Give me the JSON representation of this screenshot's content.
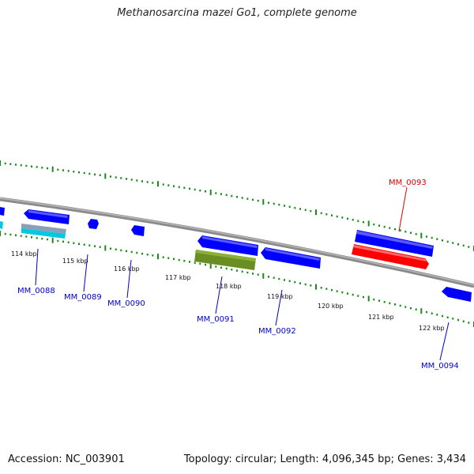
{
  "title": "Methanosarcina mazei Go1, complete genome",
  "footer": {
    "accession": "Accession: NC_003901",
    "summary": "Topology: circular; Length: 4,096,345 bp; Genes: 3,434"
  },
  "scale_labels": [
    "114 kbp",
    "115 kbp",
    "116 kbp",
    "117 kbp",
    "118 kbp",
    "119 kbp",
    "120 kbp",
    "121 kbp",
    "122 kbp"
  ],
  "gene_labels": [
    "MM_0088",
    "MM_0089",
    "MM_0090",
    "MM_0091",
    "MM_0092",
    "MM_0093",
    "MM_0094"
  ],
  "colors": {
    "backbone": "#8a8a8a",
    "forward_cds": "#0000ff",
    "reverse_cds": "#0000ff",
    "highlighted_gene": "#ff0000",
    "rrna_feature": "#6b8e23",
    "trna_feature": "#00c8e0",
    "tick": "#1a8a1a",
    "gene_label": "#0000cc",
    "highlighted_label": "#dd0000"
  }
}
